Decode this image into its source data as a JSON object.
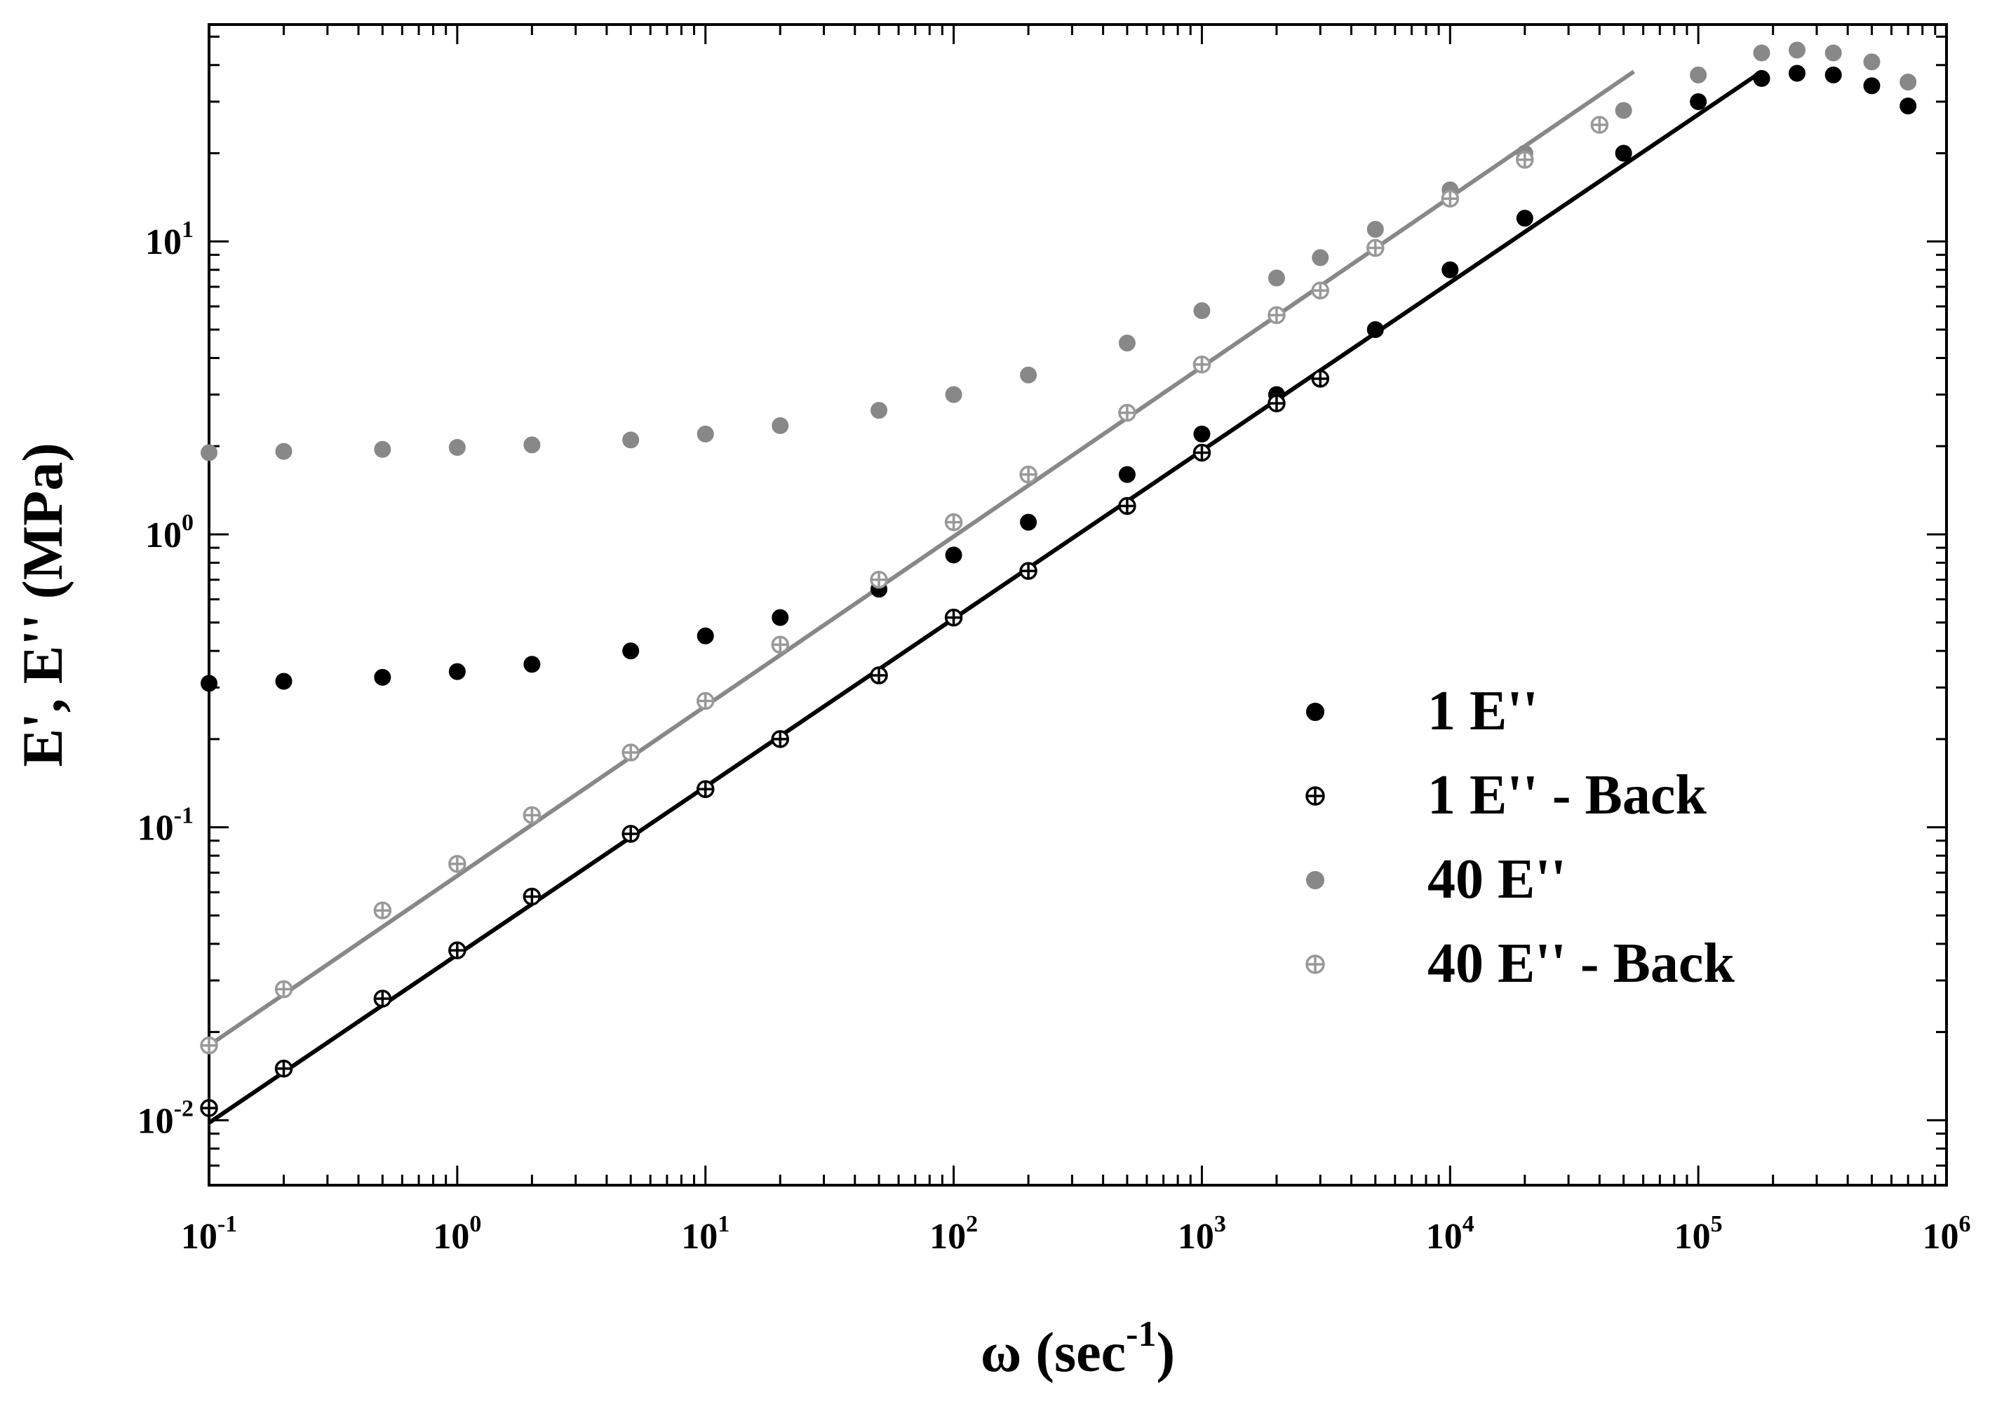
{
  "chart_data": {
    "type": "scatter",
    "title": "",
    "xlabel": {
      "base": "ω (sec",
      "sup": "-1",
      "tail": ")"
    },
    "ylabel": "E', E'' (MPa)",
    "xscale": "log",
    "yscale": "log",
    "xlim": [
      0.1,
      1000000
    ],
    "ylim": [
      0.006,
      55
    ],
    "xticks": [
      {
        "value": 0.1,
        "base": "10",
        "exp": "-1"
      },
      {
        "value": 1,
        "base": "10",
        "exp": "0"
      },
      {
        "value": 10,
        "base": "10",
        "exp": "1"
      },
      {
        "value": 100,
        "base": "10",
        "exp": "2"
      },
      {
        "value": 1000,
        "base": "10",
        "exp": "3"
      },
      {
        "value": 10000,
        "base": "10",
        "exp": "4"
      },
      {
        "value": 100000,
        "base": "10",
        "exp": "5"
      },
      {
        "value": 1000000,
        "base": "10",
        "exp": "6"
      }
    ],
    "yticks": [
      {
        "value": 0.01,
        "base": "10",
        "exp": "-2"
      },
      {
        "value": 0.1,
        "base": "10",
        "exp": "-1"
      },
      {
        "value": 1,
        "base": "10",
        "exp": "0"
      },
      {
        "value": 10,
        "base": "10",
        "exp": "1"
      }
    ],
    "legend_position": "center-right",
    "series": [
      {
        "name": "1 E''",
        "marker": "filled-circle",
        "color": "#000000",
        "x": [
          0.1,
          0.2,
          0.5,
          1,
          2,
          5,
          10,
          20,
          50,
          100,
          200,
          500,
          1000,
          2000,
          5000,
          10000,
          20000,
          50000,
          100000,
          180000,
          250000,
          350000,
          500000,
          700000
        ],
        "y": [
          0.31,
          0.315,
          0.325,
          0.34,
          0.36,
          0.4,
          0.45,
          0.52,
          0.65,
          0.85,
          1.1,
          1.6,
          2.2,
          3.0,
          5.0,
          8.0,
          12.0,
          20.0,
          30.0,
          36.0,
          37.5,
          37.0,
          34.0,
          29.0
        ]
      },
      {
        "name": "1 E'' - Back",
        "marker": "crossed-circle",
        "color": "#000000",
        "x": [
          0.1,
          0.2,
          0.5,
          1,
          2,
          5,
          10,
          20,
          50,
          100,
          200,
          500,
          1000,
          2000,
          3000
        ],
        "y": [
          0.011,
          0.015,
          0.026,
          0.038,
          0.058,
          0.095,
          0.135,
          0.2,
          0.33,
          0.52,
          0.75,
          1.25,
          1.9,
          2.8,
          3.4
        ]
      },
      {
        "name": "40 E''",
        "marker": "filled-circle",
        "color": "#888888",
        "x": [
          0.1,
          0.2,
          0.5,
          1,
          2,
          5,
          10,
          20,
          50,
          100,
          200,
          500,
          1000,
          2000,
          3000,
          5000,
          10000,
          20000,
          50000,
          100000,
          180000,
          250000,
          350000,
          500000,
          700000
        ],
        "y": [
          1.9,
          1.92,
          1.95,
          1.98,
          2.02,
          2.1,
          2.2,
          2.35,
          2.65,
          3.0,
          3.5,
          4.5,
          5.8,
          7.5,
          8.8,
          11.0,
          15.0,
          20.0,
          28.0,
          37.0,
          44.0,
          45.0,
          44.0,
          41.0,
          35.0
        ]
      },
      {
        "name": "40 E'' - Back",
        "marker": "crossed-circle",
        "color": "#999999",
        "x": [
          0.1,
          0.2,
          0.5,
          1,
          2,
          5,
          10,
          20,
          50,
          100,
          200,
          500,
          1000,
          2000,
          3000,
          5000,
          10000,
          20000,
          40000
        ],
        "y": [
          0.018,
          0.028,
          0.052,
          0.075,
          0.11,
          0.18,
          0.27,
          0.42,
          0.7,
          1.1,
          1.6,
          2.6,
          3.8,
          5.6,
          6.8,
          9.5,
          14.0,
          19.0,
          25.0
        ]
      }
    ],
    "fit_lines": [
      {
        "series": "1 E''",
        "color": "#000000",
        "x": [
          0.1,
          180000
        ],
        "y": [
          0.0098,
          38.0
        ]
      },
      {
        "series": "40 E''",
        "color": "#888888",
        "x": [
          0.1,
          55000
        ],
        "y": [
          0.018,
          38.0
        ]
      }
    ]
  }
}
